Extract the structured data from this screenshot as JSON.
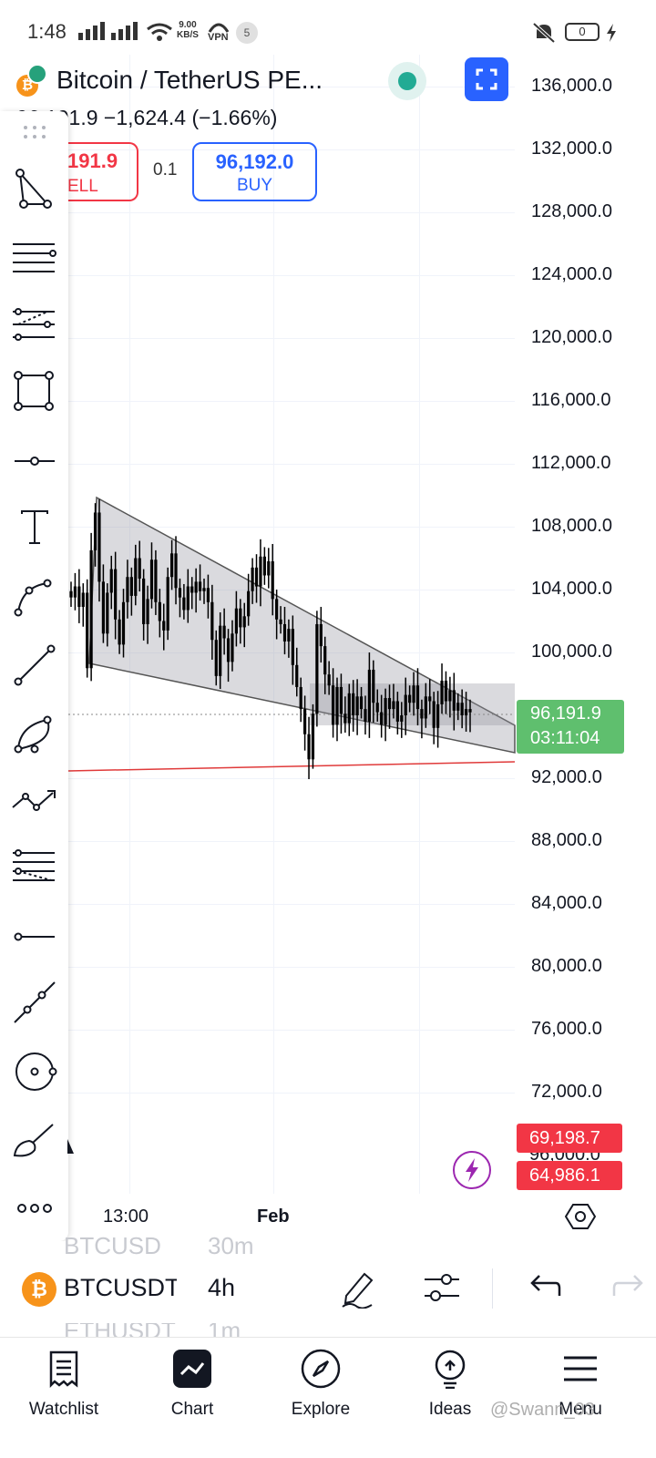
{
  "status_bar": {
    "time": "1:48",
    "net_speed_value": "9.00",
    "net_speed_unit": "KB/S",
    "vpn": "VPN",
    "notification_count": "5",
    "battery": "0"
  },
  "header": {
    "symbol_title": "Bitcoin / TetherUS PE...",
    "price_change": "96,191.9  −1,624.4 (−1.66%)"
  },
  "trade": {
    "sell_price": "191.9",
    "sell_label": "ELL",
    "spread": "0.1",
    "buy_price": "96,192.0",
    "buy_label": "BUY"
  },
  "drawing_tools": [
    {
      "icon": "triangle-pattern-icon"
    },
    {
      "icon": "horizontal-lines-icon"
    },
    {
      "icon": "pitchfork-icon"
    },
    {
      "icon": "rectangle-icon"
    },
    {
      "icon": "horizontal-ray-icon"
    },
    {
      "icon": "text-tool-icon"
    },
    {
      "icon": "curve-icon"
    },
    {
      "icon": "trend-line-icon"
    },
    {
      "icon": "arc-icon"
    },
    {
      "icon": "path-icon"
    },
    {
      "icon": "fib-retracement-icon"
    },
    {
      "icon": "horizontal-line-icon"
    },
    {
      "icon": "extended-line-icon"
    },
    {
      "icon": "circle-icon"
    },
    {
      "icon": "brush-icon"
    },
    {
      "icon": "more-icon"
    }
  ],
  "price_axis": [
    "136,000.0",
    "132,000.0",
    "128,000.0",
    "124,000.0",
    "120,000.0",
    "116,000.0",
    "112,000.0",
    "108,000.0",
    "104,000.0",
    "100,000.0",
    "92,000.0",
    "88,000.0",
    "84,000.0",
    "80,000.0",
    "76,000.0",
    "72,000.0"
  ],
  "current_price": {
    "price": "96,191.9",
    "countdown": "03:11:04",
    "color": "#5fbf6e"
  },
  "red_tags": [
    "69,198.7",
    "64,986.1"
  ],
  "time_axis": [
    "13:00",
    "Feb"
  ],
  "chart_data": {
    "type": "candlestick",
    "symbol": "BTCUSDT",
    "interval": "4h",
    "y_range": [
      62000,
      138000
    ],
    "last_price": 96191.9,
    "support_line_price_range": [
      93600,
      94200
    ],
    "closes": [
      103500,
      104200,
      102900,
      103800,
      99000,
      106500,
      108900,
      104500,
      101200,
      103800,
      105300,
      102100,
      100500,
      103200,
      104800,
      103600,
      106000,
      104700,
      101800,
      103400,
      105900,
      103200,
      102000,
      101400,
      104800,
      106300,
      104100,
      103500,
      102700,
      104200,
      103800,
      104500,
      103900,
      104100,
      103200,
      100800,
      98500,
      101700,
      100900,
      99400,
      101200,
      102800,
      101600,
      102300,
      103900,
      105400,
      104200,
      106100,
      104900,
      105800,
      103400,
      102100,
      101800,
      100700,
      101500,
      99200,
      97800,
      96400,
      94800,
      93200,
      96100,
      101800,
      100400,
      98600,
      97900,
      95400,
      97800,
      96100,
      95500,
      97400,
      96000,
      97200,
      96400,
      95600,
      98900,
      96800,
      96200,
      95400,
      97100,
      96400,
      96900,
      95600,
      96000,
      97300,
      96800,
      97900,
      96400,
      95800,
      97200,
      96900,
      95200,
      96700,
      98200,
      96900,
      97600,
      96300,
      96800,
      96000,
      96400,
      96191.9
    ]
  },
  "symbol_bar": {
    "ghost_top_symbol": "BTCUSD",
    "ghost_top_interval": "30m",
    "symbol": "BTCUSDT",
    "interval": "4h",
    "ghost_bottom_symbol": "ETHUSDT",
    "ghost_bottom_interval": "1m"
  },
  "bottom_nav": [
    {
      "label": "Watchlist",
      "icon": "watchlist-icon"
    },
    {
      "label": "Chart",
      "icon": "chart-icon"
    },
    {
      "label": "Explore",
      "icon": "compass-icon"
    },
    {
      "label": "Ideas",
      "icon": "lightbulb-icon"
    },
    {
      "label": "Menu",
      "icon": "menu-icon"
    }
  ],
  "watermark": "@Swann_03"
}
